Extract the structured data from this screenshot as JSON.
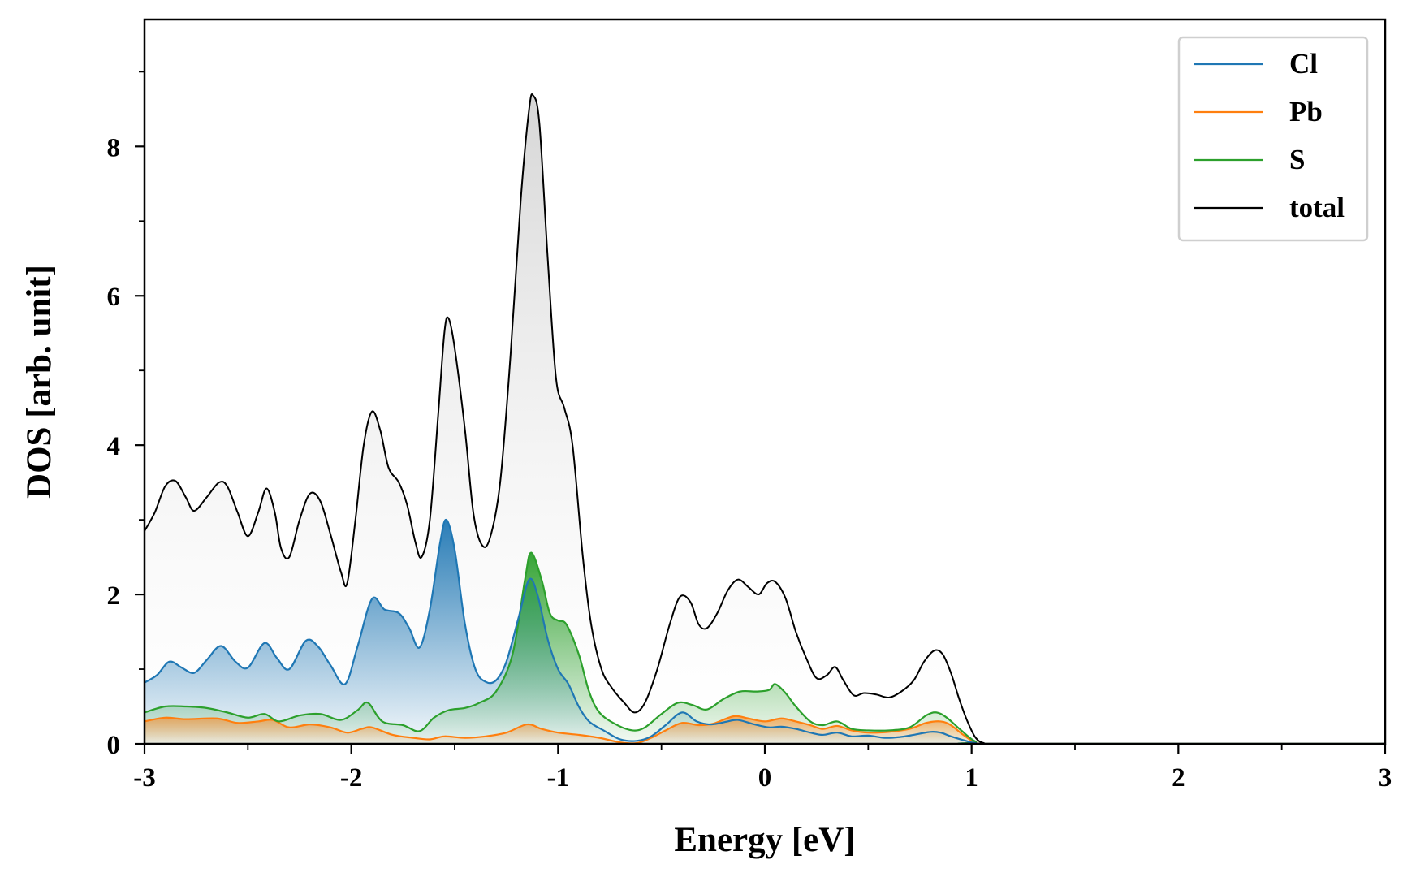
{
  "chart_data": {
    "type": "area",
    "title": "",
    "xlabel": "Energy [eV]",
    "ylabel": "DOS [arb. unit]",
    "xlim": [
      -3,
      3
    ],
    "ylim": [
      0,
      9.7
    ],
    "xticks": [
      -3,
      -2,
      -1,
      0,
      1,
      2,
      3
    ],
    "xtick_labels": [
      "-3",
      "-2",
      "-1",
      "0",
      "1",
      "2",
      "3"
    ],
    "yticks": [
      0,
      2,
      4,
      6,
      8
    ],
    "ytick_labels": [
      "0",
      "2",
      "4",
      "6",
      "8"
    ],
    "legend_position": "top-right",
    "series": [
      {
        "name": "Cl",
        "color": "#1f77b4",
        "points": [
          [
            -3.0,
            0.82
          ],
          [
            -2.94,
            0.92
          ],
          [
            -2.88,
            1.1
          ],
          [
            -2.82,
            1.02
          ],
          [
            -2.76,
            0.95
          ],
          [
            -2.7,
            1.12
          ],
          [
            -2.63,
            1.31
          ],
          [
            -2.56,
            1.1
          ],
          [
            -2.5,
            1.02
          ],
          [
            -2.42,
            1.35
          ],
          [
            -2.36,
            1.15
          ],
          [
            -2.3,
            1.0
          ],
          [
            -2.22,
            1.38
          ],
          [
            -2.16,
            1.3
          ],
          [
            -2.1,
            1.05
          ],
          [
            -2.03,
            0.8
          ],
          [
            -1.97,
            1.3
          ],
          [
            -1.9,
            1.94
          ],
          [
            -1.84,
            1.8
          ],
          [
            -1.77,
            1.75
          ],
          [
            -1.72,
            1.55
          ],
          [
            -1.67,
            1.29
          ],
          [
            -1.62,
            1.8
          ],
          [
            -1.57,
            2.7
          ],
          [
            -1.54,
            3.0
          ],
          [
            -1.5,
            2.6
          ],
          [
            -1.45,
            1.6
          ],
          [
            -1.4,
            1.0
          ],
          [
            -1.35,
            0.83
          ],
          [
            -1.3,
            0.85
          ],
          [
            -1.25,
            1.1
          ],
          [
            -1.19,
            1.7
          ],
          [
            -1.14,
            2.2
          ],
          [
            -1.1,
            2.0
          ],
          [
            -1.05,
            1.4
          ],
          [
            -1.0,
            1.0
          ],
          [
            -0.95,
            0.8
          ],
          [
            -0.9,
            0.5
          ],
          [
            -0.85,
            0.3
          ],
          [
            -0.78,
            0.18
          ],
          [
            -0.7,
            0.06
          ],
          [
            -0.62,
            0.04
          ],
          [
            -0.55,
            0.1
          ],
          [
            -0.48,
            0.25
          ],
          [
            -0.4,
            0.42
          ],
          [
            -0.33,
            0.3
          ],
          [
            -0.26,
            0.26
          ],
          [
            -0.18,
            0.3
          ],
          [
            -0.13,
            0.32
          ],
          [
            -0.05,
            0.26
          ],
          [
            0.02,
            0.22
          ],
          [
            0.08,
            0.23
          ],
          [
            0.15,
            0.2
          ],
          [
            0.22,
            0.15
          ],
          [
            0.28,
            0.12
          ],
          [
            0.35,
            0.15
          ],
          [
            0.42,
            0.1
          ],
          [
            0.5,
            0.11
          ],
          [
            0.58,
            0.08
          ],
          [
            0.65,
            0.09
          ],
          [
            0.72,
            0.12
          ],
          [
            0.8,
            0.16
          ],
          [
            0.85,
            0.15
          ],
          [
            0.9,
            0.1
          ],
          [
            0.96,
            0.05
          ],
          [
            1.02,
            0.01
          ],
          [
            1.1,
            0.0
          ],
          [
            3.0,
            0.0
          ]
        ]
      },
      {
        "name": "Pb",
        "color": "#ff7f0e",
        "points": [
          [
            -3.0,
            0.3
          ],
          [
            -2.9,
            0.35
          ],
          [
            -2.8,
            0.33
          ],
          [
            -2.65,
            0.34
          ],
          [
            -2.55,
            0.28
          ],
          [
            -2.45,
            0.3
          ],
          [
            -2.38,
            0.32
          ],
          [
            -2.3,
            0.22
          ],
          [
            -2.2,
            0.26
          ],
          [
            -2.1,
            0.22
          ],
          [
            -2.02,
            0.15
          ],
          [
            -1.95,
            0.2
          ],
          [
            -1.9,
            0.22
          ],
          [
            -1.8,
            0.12
          ],
          [
            -1.7,
            0.08
          ],
          [
            -1.62,
            0.06
          ],
          [
            -1.55,
            0.1
          ],
          [
            -1.45,
            0.08
          ],
          [
            -1.35,
            0.1
          ],
          [
            -1.25,
            0.15
          ],
          [
            -1.15,
            0.26
          ],
          [
            -1.08,
            0.2
          ],
          [
            -1.0,
            0.15
          ],
          [
            -0.9,
            0.12
          ],
          [
            -0.8,
            0.08
          ],
          [
            -0.7,
            0.02
          ],
          [
            -0.62,
            0.01
          ],
          [
            -0.55,
            0.08
          ],
          [
            -0.48,
            0.18
          ],
          [
            -0.4,
            0.28
          ],
          [
            -0.32,
            0.25
          ],
          [
            -0.25,
            0.27
          ],
          [
            -0.15,
            0.37
          ],
          [
            -0.08,
            0.34
          ],
          [
            0.0,
            0.3
          ],
          [
            0.08,
            0.34
          ],
          [
            0.15,
            0.3
          ],
          [
            0.22,
            0.25
          ],
          [
            0.28,
            0.2
          ],
          [
            0.35,
            0.24
          ],
          [
            0.42,
            0.18
          ],
          [
            0.5,
            0.15
          ],
          [
            0.6,
            0.16
          ],
          [
            0.7,
            0.2
          ],
          [
            0.78,
            0.28
          ],
          [
            0.85,
            0.3
          ],
          [
            0.9,
            0.25
          ],
          [
            0.96,
            0.12
          ],
          [
            1.02,
            0.02
          ],
          [
            1.1,
            0.0
          ],
          [
            3.0,
            0.0
          ]
        ]
      },
      {
        "name": "S",
        "color": "#2ca02c",
        "points": [
          [
            -3.0,
            0.42
          ],
          [
            -2.9,
            0.5
          ],
          [
            -2.8,
            0.5
          ],
          [
            -2.7,
            0.48
          ],
          [
            -2.6,
            0.42
          ],
          [
            -2.5,
            0.35
          ],
          [
            -2.42,
            0.4
          ],
          [
            -2.35,
            0.3
          ],
          [
            -2.25,
            0.38
          ],
          [
            -2.15,
            0.4
          ],
          [
            -2.05,
            0.32
          ],
          [
            -1.97,
            0.45
          ],
          [
            -1.92,
            0.55
          ],
          [
            -1.85,
            0.3
          ],
          [
            -1.75,
            0.25
          ],
          [
            -1.67,
            0.17
          ],
          [
            -1.6,
            0.35
          ],
          [
            -1.53,
            0.45
          ],
          [
            -1.45,
            0.48
          ],
          [
            -1.38,
            0.55
          ],
          [
            -1.3,
            0.7
          ],
          [
            -1.22,
            1.2
          ],
          [
            -1.16,
            2.2
          ],
          [
            -1.13,
            2.56
          ],
          [
            -1.08,
            2.2
          ],
          [
            -1.04,
            1.75
          ],
          [
            -1.0,
            1.65
          ],
          [
            -0.96,
            1.6
          ],
          [
            -0.9,
            1.2
          ],
          [
            -0.85,
            0.7
          ],
          [
            -0.8,
            0.42
          ],
          [
            -0.72,
            0.26
          ],
          [
            -0.64,
            0.18
          ],
          [
            -0.58,
            0.22
          ],
          [
            -0.5,
            0.4
          ],
          [
            -0.42,
            0.55
          ],
          [
            -0.35,
            0.52
          ],
          [
            -0.28,
            0.46
          ],
          [
            -0.2,
            0.6
          ],
          [
            -0.12,
            0.7
          ],
          [
            -0.04,
            0.7
          ],
          [
            0.02,
            0.72
          ],
          [
            0.05,
            0.8
          ],
          [
            0.1,
            0.68
          ],
          [
            0.15,
            0.5
          ],
          [
            0.22,
            0.3
          ],
          [
            0.28,
            0.25
          ],
          [
            0.35,
            0.3
          ],
          [
            0.42,
            0.2
          ],
          [
            0.5,
            0.18
          ],
          [
            0.6,
            0.18
          ],
          [
            0.7,
            0.22
          ],
          [
            0.78,
            0.38
          ],
          [
            0.83,
            0.42
          ],
          [
            0.88,
            0.35
          ],
          [
            0.95,
            0.18
          ],
          [
            1.02,
            0.03
          ],
          [
            1.1,
            0.0
          ],
          [
            3.0,
            0.0
          ]
        ]
      },
      {
        "name": "total",
        "color": "#000000",
        "points": [
          [
            -3.0,
            2.85
          ],
          [
            -2.95,
            3.1
          ],
          [
            -2.9,
            3.45
          ],
          [
            -2.85,
            3.52
          ],
          [
            -2.8,
            3.3
          ],
          [
            -2.76,
            3.12
          ],
          [
            -2.7,
            3.3
          ],
          [
            -2.64,
            3.5
          ],
          [
            -2.6,
            3.45
          ],
          [
            -2.55,
            3.1
          ],
          [
            -2.5,
            2.78
          ],
          [
            -2.45,
            3.1
          ],
          [
            -2.41,
            3.42
          ],
          [
            -2.37,
            3.1
          ],
          [
            -2.34,
            2.62
          ],
          [
            -2.3,
            2.5
          ],
          [
            -2.25,
            3.0
          ],
          [
            -2.2,
            3.35
          ],
          [
            -2.15,
            3.25
          ],
          [
            -2.1,
            2.8
          ],
          [
            -2.05,
            2.3
          ],
          [
            -2.02,
            2.15
          ],
          [
            -1.98,
            3.0
          ],
          [
            -1.94,
            4.0
          ],
          [
            -1.9,
            4.45
          ],
          [
            -1.86,
            4.2
          ],
          [
            -1.82,
            3.7
          ],
          [
            -1.77,
            3.5
          ],
          [
            -1.73,
            3.2
          ],
          [
            -1.69,
            2.7
          ],
          [
            -1.66,
            2.5
          ],
          [
            -1.62,
            3.0
          ],
          [
            -1.58,
            4.4
          ],
          [
            -1.55,
            5.5
          ],
          [
            -1.53,
            5.7
          ],
          [
            -1.5,
            5.3
          ],
          [
            -1.45,
            4.2
          ],
          [
            -1.41,
            3.1
          ],
          [
            -1.37,
            2.67
          ],
          [
            -1.33,
            2.75
          ],
          [
            -1.28,
            3.5
          ],
          [
            -1.23,
            5.2
          ],
          [
            -1.18,
            7.3
          ],
          [
            -1.14,
            8.5
          ],
          [
            -1.12,
            8.68
          ],
          [
            -1.09,
            8.3
          ],
          [
            -1.05,
            6.5
          ],
          [
            -1.01,
            4.9
          ],
          [
            -0.97,
            4.5
          ],
          [
            -0.93,
            4.0
          ],
          [
            -0.88,
            2.5
          ],
          [
            -0.84,
            1.6
          ],
          [
            -0.79,
            1.0
          ],
          [
            -0.74,
            0.75
          ],
          [
            -0.68,
            0.55
          ],
          [
            -0.63,
            0.42
          ],
          [
            -0.58,
            0.55
          ],
          [
            -0.52,
            1.0
          ],
          [
            -0.46,
            1.6
          ],
          [
            -0.41,
            1.97
          ],
          [
            -0.36,
            1.9
          ],
          [
            -0.32,
            1.6
          ],
          [
            -0.28,
            1.55
          ],
          [
            -0.23,
            1.75
          ],
          [
            -0.18,
            2.05
          ],
          [
            -0.13,
            2.2
          ],
          [
            -0.08,
            2.1
          ],
          [
            -0.03,
            2.0
          ],
          [
            0.01,
            2.15
          ],
          [
            0.05,
            2.17
          ],
          [
            0.1,
            1.95
          ],
          [
            0.15,
            1.5
          ],
          [
            0.2,
            1.15
          ],
          [
            0.25,
            0.88
          ],
          [
            0.3,
            0.92
          ],
          [
            0.34,
            1.03
          ],
          [
            0.38,
            0.85
          ],
          [
            0.43,
            0.65
          ],
          [
            0.48,
            0.68
          ],
          [
            0.54,
            0.66
          ],
          [
            0.6,
            0.62
          ],
          [
            0.66,
            0.7
          ],
          [
            0.72,
            0.85
          ],
          [
            0.77,
            1.1
          ],
          [
            0.82,
            1.25
          ],
          [
            0.86,
            1.2
          ],
          [
            0.9,
            0.95
          ],
          [
            0.94,
            0.6
          ],
          [
            0.98,
            0.3
          ],
          [
            1.02,
            0.08
          ],
          [
            1.06,
            0.01
          ],
          [
            1.12,
            0.0
          ],
          [
            2.96,
            0.0
          ],
          [
            3.0,
            0.03
          ]
        ]
      }
    ]
  }
}
